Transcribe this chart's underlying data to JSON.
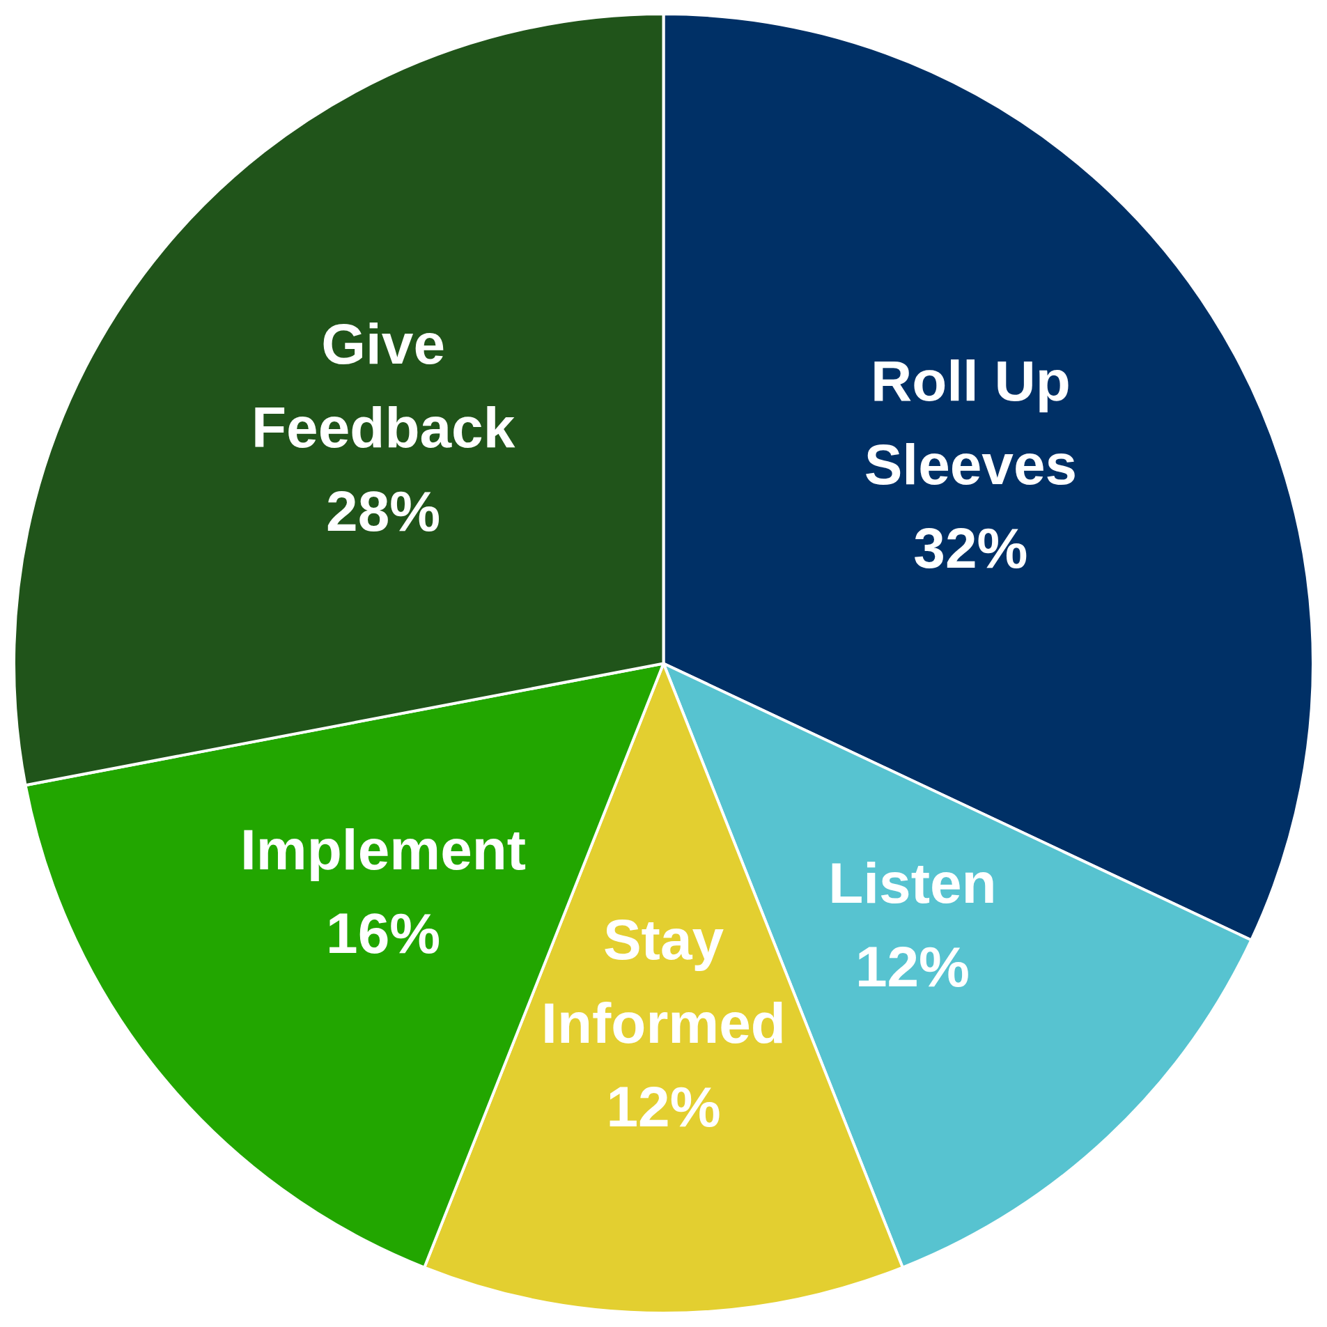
{
  "chart_data": {
    "type": "pie",
    "categories": [
      "Roll Up Sleeves",
      "Listen",
      "Stay Informed",
      "Implement",
      "Give Feedback"
    ],
    "values": [
      32,
      12,
      12,
      16,
      28
    ],
    "value_labels": [
      "32%",
      "12%",
      "12%",
      "16%",
      "28%"
    ],
    "colors": [
      "#003066",
      "#57c3d0",
      "#e3cf30",
      "#22a600",
      "#20541a"
    ]
  }
}
